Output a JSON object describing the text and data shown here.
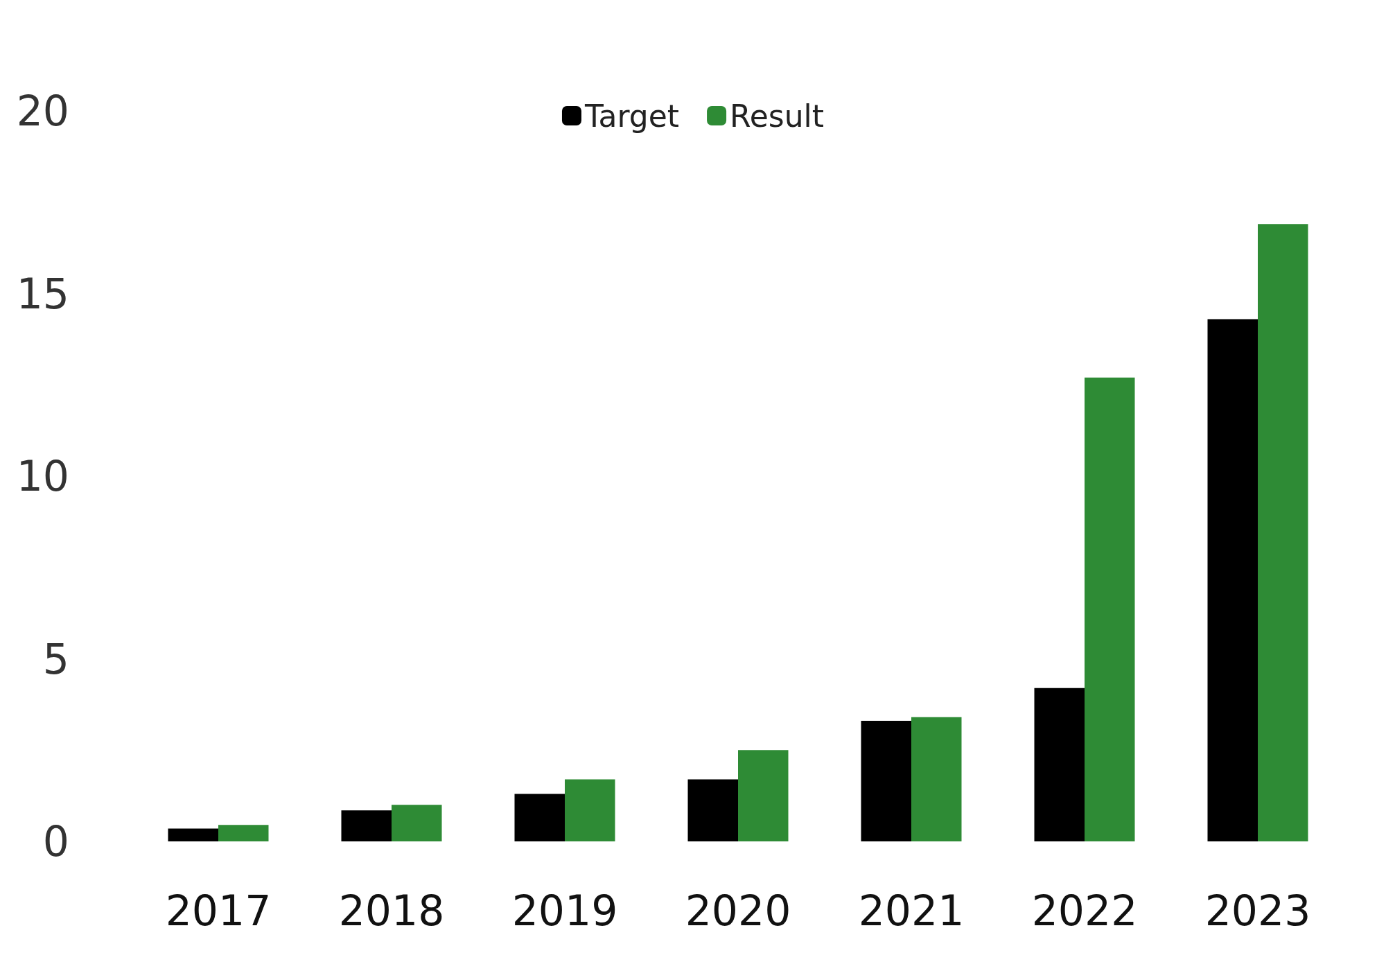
{
  "chart_data": {
    "type": "bar",
    "categories": [
      "2017",
      "2018",
      "2019",
      "2020",
      "2021",
      "2022",
      "2023"
    ],
    "series": [
      {
        "name": "Target",
        "color": "#000000",
        "values": [
          0.35,
          0.85,
          1.3,
          1.7,
          3.3,
          4.2,
          14.3
        ]
      },
      {
        "name": "Result",
        "color": "#2e8b35",
        "values": [
          0.45,
          1.0,
          1.7,
          2.5,
          3.4,
          12.7,
          16.9
        ]
      }
    ],
    "ylim": [
      0,
      20
    ],
    "yticks": [
      0,
      5,
      10,
      15,
      20
    ],
    "grid": false,
    "legend": "top"
  }
}
